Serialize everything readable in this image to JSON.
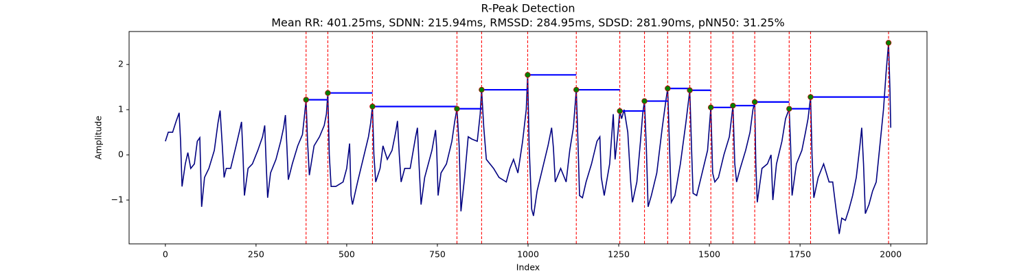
{
  "chart_data": {
    "type": "line",
    "title": "R-Peak Detection",
    "subtitle": "Mean RR: 401.25ms, SDNN: 215.94ms, RMSSD: 284.95ms, SDSD: 281.90ms, pNN50: 31.25%",
    "xlabel": "Index",
    "ylabel": "Amplitude",
    "xlim": [
      -100,
      2100
    ],
    "ylim": [
      -1.97,
      2.73
    ],
    "xticks": [
      0,
      250,
      500,
      750,
      1000,
      1250,
      1500,
      1750,
      2000
    ],
    "yticks": [
      {
        "value": -1,
        "label": "−1"
      },
      0,
      1,
      2
    ],
    "signal": {
      "color": "#000080",
      "x": [
        0,
        8,
        20,
        30,
        38,
        42,
        46,
        55,
        62,
        70,
        80,
        88,
        95,
        100,
        108,
        120,
        135,
        145,
        151,
        157,
        162,
        168,
        180,
        195,
        205,
        210,
        214,
        218,
        228,
        240,
        255,
        268,
        274,
        278,
        282,
        290,
        305,
        318,
        326,
        331,
        335,
        339,
        350,
        365,
        378,
        384,
        388,
        392,
        397,
        410,
        425,
        438,
        444,
        448,
        452,
        457,
        470,
        490,
        500,
        508,
        512,
        516,
        530,
        545,
        560,
        566,
        571,
        575,
        580,
        592,
        600,
        612,
        625,
        635,
        640,
        645,
        650,
        660,
        675,
        690,
        695,
        700,
        705,
        715,
        735,
        745,
        748,
        752,
        760,
        775,
        790,
        798,
        804,
        810,
        815,
        825,
        835,
        845,
        860,
        868,
        872,
        878,
        885,
        895,
        905,
        920,
        940,
        950,
        960,
        972,
        985,
        995,
        999,
        1003,
        1010,
        1015,
        1025,
        1040,
        1055,
        1065,
        1070,
        1075,
        1090,
        1105,
        1115,
        1125,
        1133,
        1138,
        1142,
        1150,
        1160,
        1175,
        1190,
        1198,
        1202,
        1210,
        1225,
        1235,
        1240,
        1248,
        1253,
        1258,
        1265,
        1275,
        1283,
        1288,
        1300,
        1310,
        1316,
        1321,
        1326,
        1331,
        1340,
        1355,
        1370,
        1380,
        1385,
        1390,
        1395,
        1405,
        1420,
        1435,
        1446,
        1451,
        1455,
        1465,
        1480,
        1495,
        1504,
        1509,
        1515,
        1525,
        1540,
        1555,
        1565,
        1570,
        1575,
        1585,
        1600,
        1612,
        1620,
        1625,
        1628,
        1632,
        1645,
        1660,
        1670,
        1675,
        1685,
        1700,
        1710,
        1720,
        1724,
        1728,
        1740,
        1755,
        1765,
        1772,
        1779,
        1783,
        1788,
        1800,
        1815,
        1830,
        1840,
        1850,
        1858,
        1865,
        1875,
        1885,
        1895,
        1905,
        1915,
        1920,
        1925,
        1930,
        1940,
        1950,
        1960,
        1970,
        1980,
        1987,
        1994,
        1998,
        2000
      ],
      "values": [
        0.3,
        0.5,
        0.5,
        0.75,
        0.93,
        0.3,
        -0.7,
        -0.2,
        0.05,
        -0.3,
        -0.2,
        0.3,
        0.38,
        -1.15,
        -0.5,
        -0.3,
        0.1,
        0.7,
        0.98,
        0.2,
        -0.5,
        -0.3,
        -0.3,
        0.2,
        0.55,
        0.73,
        0.0,
        -0.9,
        -0.3,
        -0.2,
        0.1,
        0.4,
        0.65,
        -0.2,
        -0.95,
        -0.4,
        -0.1,
        0.3,
        0.6,
        0.88,
        0.2,
        -0.55,
        -0.2,
        0.2,
        0.45,
        0.9,
        1.22,
        0.3,
        -0.45,
        0.2,
        0.4,
        0.65,
        0.9,
        1.37,
        0.0,
        -0.7,
        -0.7,
        -0.6,
        -0.3,
        0.25,
        -0.9,
        -1.1,
        -0.6,
        -0.1,
        0.4,
        0.7,
        1.07,
        0.0,
        -0.6,
        -0.3,
        0.2,
        -0.1,
        0.1,
        0.5,
        0.75,
        0.0,
        -0.6,
        -0.3,
        -0.3,
        0.4,
        0.6,
        -0.3,
        -1.1,
        -0.5,
        0.1,
        0.55,
        0.15,
        -0.9,
        -0.4,
        -0.2,
        0.3,
        0.75,
        1.02,
        0.2,
        -1.25,
        -0.5,
        0.4,
        0.35,
        0.3,
        0.9,
        1.44,
        0.6,
        -0.1,
        -0.2,
        -0.3,
        -0.5,
        -0.6,
        -0.3,
        -0.1,
        -0.4,
        0.3,
        1.0,
        1.77,
        0.2,
        -1.2,
        -1.35,
        -0.8,
        -0.3,
        0.2,
        0.6,
        0.15,
        -0.6,
        -0.3,
        -0.6,
        0.1,
        0.6,
        1.44,
        0.2,
        -0.9,
        -0.95,
        -0.6,
        -0.2,
        0.3,
        0.4,
        -0.5,
        -0.9,
        -0.2,
        0.9,
        -0.1,
        0.5,
        0.97,
        0.8,
        1.0,
        0.5,
        -0.6,
        -1.05,
        -0.6,
        0.3,
        0.9,
        1.19,
        0.2,
        -1.15,
        -0.9,
        -0.4,
        0.6,
        1.2,
        1.47,
        0.2,
        -1.05,
        -0.9,
        -0.2,
        0.7,
        1.43,
        0.1,
        -0.85,
        -0.9,
        -0.4,
        0.1,
        1.05,
        -0.4,
        -0.6,
        -0.5,
        0.0,
        0.4,
        1.09,
        -0.2,
        -0.6,
        -0.3,
        0.1,
        0.5,
        1.0,
        1.17,
        -0.2,
        -1.05,
        -0.3,
        -0.2,
        0.0,
        -1.0,
        -0.2,
        0.3,
        0.8,
        1.02,
        0.2,
        -0.9,
        -0.2,
        0.1,
        0.5,
        0.8,
        1.28,
        0.0,
        -0.95,
        -0.5,
        -0.2,
        -0.6,
        -0.6,
        -1.25,
        -1.75,
        -1.4,
        -1.45,
        -1.2,
        -0.9,
        -0.5,
        0.2,
        0.6,
        -0.2,
        -1.3,
        -1.1,
        -0.8,
        -0.6,
        0.2,
        1.0,
        1.8,
        2.48,
        1.4,
        0.6
      ]
    },
    "peaks": {
      "color": "green",
      "edge_color": "#c00000",
      "x": [
        388,
        448,
        571,
        804,
        872,
        999,
        1133,
        1253,
        1321,
        1385,
        1446,
        1504,
        1565,
        1625,
        1720,
        1779,
        1994
      ],
      "values": [
        1.22,
        1.37,
        1.07,
        1.02,
        1.44,
        1.77,
        1.44,
        0.97,
        1.19,
        1.47,
        1.43,
        1.05,
        1.09,
        1.17,
        1.02,
        1.28,
        2.48
      ]
    },
    "peak_line_color": "red",
    "rr_line_color": "blue"
  }
}
